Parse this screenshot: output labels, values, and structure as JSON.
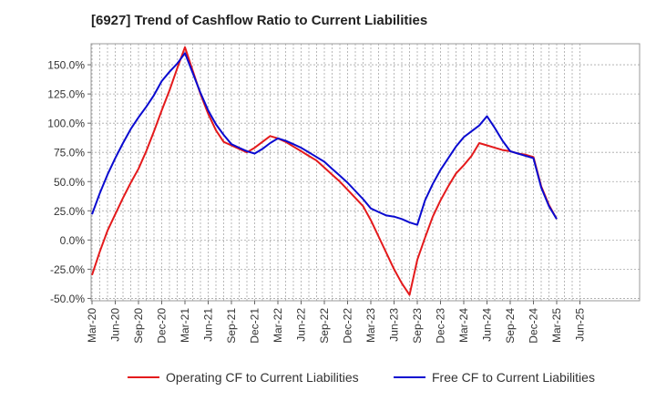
{
  "chart_data": {
    "type": "line",
    "title": "[6927]  Trend of Cashflow Ratio to Current Liabilities",
    "xlabel": "",
    "ylabel": "",
    "x_tick_labels": [
      "Mar-20",
      "Jun-20",
      "Sep-20",
      "Dec-20",
      "Mar-21",
      "Jun-21",
      "Sep-21",
      "Dec-21",
      "Mar-22",
      "Jun-22",
      "Sep-22",
      "Dec-22",
      "Mar-23",
      "Jun-23",
      "Sep-23",
      "Dec-23",
      "Mar-24",
      "Jun-24",
      "Sep-24",
      "Dec-24",
      "Mar-25",
      "Jun-25"
    ],
    "y_tick_labels": [
      "-50.0%",
      "-25.0%",
      "0.0%",
      "25.0%",
      "50.0%",
      "75.0%",
      "100.0%",
      "125.0%",
      "150.0%"
    ],
    "y_ticks": [
      -50,
      -25,
      0,
      25,
      50,
      75,
      100,
      125,
      150
    ],
    "ylim": [
      -52,
      168
    ],
    "x_unit": "month",
    "grid": true,
    "legend_position": "bottom",
    "x": [
      "2020-03",
      "2020-04",
      "2020-05",
      "2020-06",
      "2020-07",
      "2020-08",
      "2020-09",
      "2020-10",
      "2020-11",
      "2020-12",
      "2021-01",
      "2021-02",
      "2021-03",
      "2021-04",
      "2021-05",
      "2021-06",
      "2021-07",
      "2021-08",
      "2021-09",
      "2021-10",
      "2021-11",
      "2021-12",
      "2022-01",
      "2022-02",
      "2022-03",
      "2022-04",
      "2022-05",
      "2022-06",
      "2022-07",
      "2022-08",
      "2022-09",
      "2022-10",
      "2022-11",
      "2022-12",
      "2023-01",
      "2023-02",
      "2023-03",
      "2023-04",
      "2023-05",
      "2023-06",
      "2023-07",
      "2023-08",
      "2023-09",
      "2023-10",
      "2023-11",
      "2023-12",
      "2024-01",
      "2024-02",
      "2024-03",
      "2024-04",
      "2024-05",
      "2024-06",
      "2024-07",
      "2024-08",
      "2024-09",
      "2024-10",
      "2024-11",
      "2024-12",
      "2025-01",
      "2025-02",
      "2025-03"
    ],
    "series": [
      {
        "name": "Operating CF to Current Liabilities",
        "color": "#e41a1c",
        "values": [
          -30,
          -10,
          8,
          22,
          36,
          49,
          61,
          76,
          93,
          111,
          128,
          147,
          165,
          145,
          125,
          108,
          94,
          84,
          81,
          78,
          75,
          79,
          84,
          89,
          87,
          84,
          80,
          76,
          72,
          68,
          62,
          56,
          50,
          43,
          36,
          29,
          17,
          3,
          -11,
          -25,
          -37,
          -47,
          -17,
          2,
          20,
          34,
          46,
          57,
          64,
          72,
          83,
          81,
          79,
          77,
          76,
          74,
          73,
          71,
          46,
          30,
          18
        ],
        "values_note": "monthly points approximated where the line is interpolated between quarterly readings"
      },
      {
        "name": "Free CF to Current Liabilities",
        "color": "#0a0ad0",
        "values": [
          22,
          40,
          56,
          70,
          83,
          95,
          105,
          114,
          124,
          136,
          144,
          151,
          160,
          143,
          126,
          111,
          99,
          90,
          82,
          79,
          76,
          74,
          78,
          83,
          87,
          85,
          82,
          79,
          75,
          71,
          67,
          61,
          55,
          49,
          42,
          35,
          27,
          24,
          21,
          20,
          18,
          15,
          13,
          34,
          48,
          60,
          70,
          80,
          88,
          93,
          98,
          106,
          96,
          85,
          76,
          74,
          72,
          70,
          45,
          29,
          18
        ],
        "values_note": "monthly points approximated where the line is interpolated between quarterly readings"
      }
    ]
  }
}
